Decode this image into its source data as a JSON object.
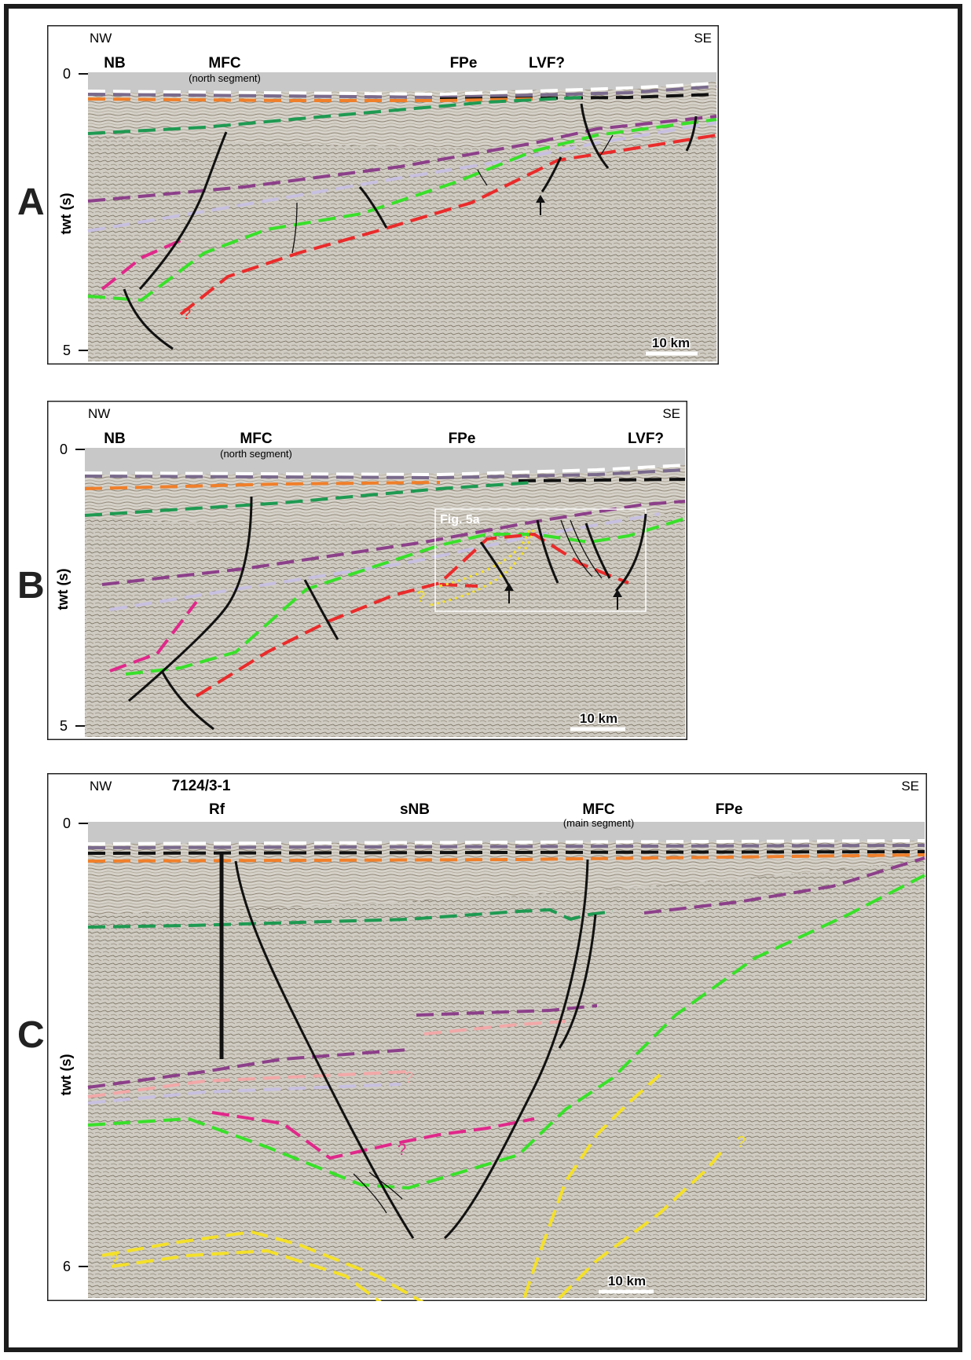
{
  "panels": [
    {
      "letter": "A",
      "dir_left": "NW",
      "dir_right": "SE",
      "axis_label": "twt (s)",
      "tick_top": "0",
      "tick_bottom": "5",
      "scale_bar": "10 km",
      "structures": [
        {
          "label": "NB"
        },
        {
          "label": "MFC",
          "sub": "(north segment)"
        },
        {
          "label": "FPe"
        },
        {
          "label": "LVF?"
        }
      ]
    },
    {
      "letter": "B",
      "dir_left": "NW",
      "dir_right": "SE",
      "axis_label": "twt (s)",
      "tick_top": "0",
      "tick_bottom": "5",
      "scale_bar": "10 km",
      "inset_label": "Fig. 5a",
      "structures": [
        {
          "label": "NB"
        },
        {
          "label": "MFC",
          "sub": "(north segment)"
        },
        {
          "label": "FPe"
        },
        {
          "label": "LVF?"
        }
      ]
    },
    {
      "letter": "C",
      "dir_left": "NW",
      "dir_right": "SE",
      "axis_label": "twt (s)",
      "tick_top": "0",
      "tick_bottom": "6",
      "scale_bar": "10 km",
      "well_name": "7124/3-1",
      "well_sub": "Rf",
      "structures": [
        {
          "label": "sNB"
        },
        {
          "label": "MFC",
          "sub": "(main segment)"
        },
        {
          "label": "FPe"
        }
      ]
    }
  ],
  "question_mark": "?",
  "colors": {
    "horizon_white": "#ffffff",
    "horizon_purple_grey": "#7a6a8c",
    "horizon_black": "#111111",
    "horizon_orange": "#f07f2a",
    "horizon_dark_green": "#1e9a52",
    "horizon_purple": "#8c3f8a",
    "horizon_lavender": "#c8c0e0",
    "horizon_light_green": "#39e02a",
    "horizon_red": "#ea2b2b",
    "horizon_magenta": "#e0288a",
    "horizon_pink": "#f2a8a8",
    "horizon_yellow": "#f4e02a",
    "fault": "#111111",
    "water": "#c8c8c8"
  }
}
